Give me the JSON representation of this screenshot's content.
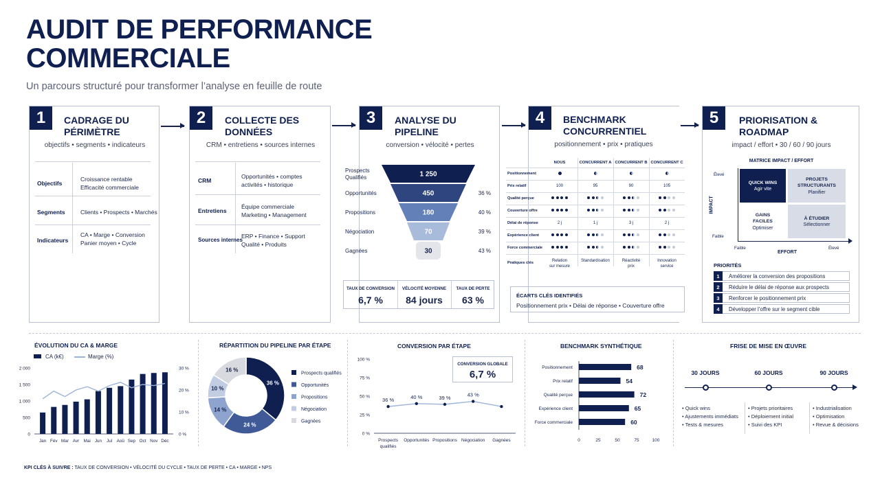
{
  "header": {
    "title": "AUDIT DE PERFORMANCE COMMERCIALE",
    "subtitle": "Un parcours structuré pour transformer l’analyse en feuille de route"
  },
  "steps": [
    {
      "num": "1",
      "title": "CADRAGE DU PÉRIMÈTRE",
      "sub": "objectifs • segments • indicateurs",
      "rows": [
        {
          "label": "Objectifs",
          "text": "Croissance rentable\nEfficacité commerciale"
        },
        {
          "label": "Segments",
          "text": "Clients • Prospects • Marchés"
        },
        {
          "label": "Indicateurs",
          "text": "CA • Marge • Conversion\nPanier moyen • Cycle"
        }
      ]
    },
    {
      "num": "2",
      "title": "COLLECTE DES DONNÉES",
      "sub": "CRM • entretiens • sources internes",
      "rows": [
        {
          "label": "CRM",
          "text": "Opportunités • comptes\nactivités • historique"
        },
        {
          "label": "Entretiens",
          "text": "Équipe commerciale\nMarketing • Management"
        },
        {
          "label": "Sources internes",
          "text": "ERP • Finance • Support\nQualité • Produits"
        }
      ]
    },
    {
      "num": "3",
      "title": "ANALYSE DU PIPELINE",
      "sub": "conversion • vélocité • pertes"
    },
    {
      "num": "4",
      "title": "BENCHMARK CONCURRENTIEL",
      "sub": "positionnement • prix • pratiques"
    },
    {
      "num": "5",
      "title": "PRIORISATION & ROADMAP",
      "sub": "impact / effort • 30 / 60 / 90 jours"
    }
  ],
  "funnel": {
    "stages": [
      {
        "label": "Prospects\nQualifiés",
        "value": "1 250",
        "rate": "",
        "color": "#0f1f4f"
      },
      {
        "label": "Opportunités",
        "value": "450",
        "rate": "36 %",
        "color": "#2e4580"
      },
      {
        "label": "Propositions",
        "value": "180",
        "rate": "40 %",
        "color": "#6480b8"
      },
      {
        "label": "Négociation",
        "value": "70",
        "rate": "39 %",
        "color": "#a9bbdb"
      },
      {
        "label": "Gagnées",
        "value": "30",
        "rate": "43 %",
        "color": "#e3e5ea"
      }
    ],
    "kpis": [
      {
        "label": "TAUX DE CONVERSION",
        "value": "6,7 %"
      },
      {
        "label": "VÉLOCITÉ MOYENNE",
        "value": "84 jours"
      },
      {
        "label": "TAUX DE PERTE",
        "value": "63 %"
      }
    ]
  },
  "benchmark": {
    "columns": [
      "NOUS",
      "CONCURRENT A",
      "CONCURRENT B",
      "CONCURRENT C"
    ],
    "rows": [
      {
        "label": "Positionnement",
        "type": "half",
        "cells": [
          1,
          0.5,
          0.5,
          0.5
        ]
      },
      {
        "label": "Prix relatif",
        "type": "text",
        "cells": [
          "100",
          "95",
          "90",
          "105"
        ]
      },
      {
        "label": "Qualité perçue",
        "type": "dots",
        "cells": [
          4,
          2.5,
          2.5,
          2
        ]
      },
      {
        "label": "Couverture offre",
        "type": "dots",
        "cells": [
          4,
          2.5,
          2.5,
          2
        ]
      },
      {
        "label": "Délai de réponse",
        "type": "text",
        "cells": [
          "2 j",
          "1 j",
          "3 j",
          "2 j"
        ]
      },
      {
        "label": "Expérience client",
        "type": "dots",
        "cells": [
          4,
          2.5,
          2.5,
          2
        ]
      },
      {
        "label": "Force commerciale",
        "type": "dots",
        "cells": [
          4,
          2.5,
          2.5,
          2
        ]
      },
      {
        "label": "Pratiques clés",
        "type": "text",
        "cells": [
          "Relation\nsur mesure",
          "Standardisation",
          "Réactivité\nprix",
          "Innovation\nservice"
        ]
      }
    ],
    "gaps_title": "ÉCARTS CLÉS IDENTIFIÉS",
    "gaps_text": "Positionnement prix • Délai de réponse • Couverture offre"
  },
  "matrix": {
    "title": "MATRICE IMPACT / EFFORT",
    "impact": "IMPACT",
    "effort": "EFFORT",
    "high": "Élevé",
    "low": "Faible",
    "high_x": "Élevé",
    "low_x": "Faible",
    "quadrants": [
      {
        "title": "QUICK WINS",
        "sub": "Agir vite",
        "dark": true
      },
      {
        "title": "PROJETS STRUCTURANTS",
        "sub": "Planifier",
        "dark": false
      },
      {
        "title": "GAINS FACILES",
        "sub": "Optimiser",
        "dark": false
      },
      {
        "title": "À ÉTUDIER",
        "sub": "Sélectionner",
        "dark": false
      }
    ],
    "priorities_title": "PRIORITÉS",
    "priorities": [
      "Améliorer la conversion des propositions",
      "Réduire le délai de réponse aux prospects",
      "Renforcer le positionnement prix",
      "Développer l’offre sur le segment cible"
    ]
  },
  "chart_data": [
    {
      "type": "bar",
      "title": "ÉVOLUTION DU CA & MARGE",
      "categories": [
        "Jan",
        "Fév",
        "Mar",
        "Avr",
        "Mai",
        "Jun",
        "Jul",
        "Aoû",
        "Sep",
        "Oct",
        "Nov",
        "Déc"
      ],
      "series": [
        {
          "name": "CA (k€)",
          "type": "bar",
          "values": [
            650,
            820,
            880,
            980,
            1050,
            1300,
            1400,
            1450,
            1650,
            1820,
            1850,
            1870
          ]
        },
        {
          "name": "Marge (%)",
          "type": "line",
          "values": [
            16,
            19.5,
            17,
            20,
            21.5,
            19.5,
            22,
            23.5,
            21,
            22.5,
            22,
            23
          ]
        }
      ],
      "ylim": [
        0,
        2000
      ],
      "yticks": [
        "0",
        "500",
        "1 000",
        "1 500",
        "2 000"
      ],
      "y2lim": [
        0,
        30
      ],
      "y2ticks": [
        "0 %",
        "10 %",
        "20 %",
        "30 %"
      ],
      "legend": "top-left"
    },
    {
      "type": "pie",
      "title": "RÉPARTITION DU PIPELINE PAR ÉTAPE",
      "labels": [
        "Prospects qualifiés",
        "Opportunités",
        "Propositions",
        "Négociation",
        "Gagnées"
      ],
      "values": [
        36,
        24,
        14,
        10,
        16
      ],
      "display": [
        "36 %",
        "24 %",
        "14 %",
        "10 %",
        "16 %"
      ],
      "colors": [
        "#0f1f4f",
        "#3f5a96",
        "#8ea4cf",
        "#c2cde4",
        "#d9dadf"
      ],
      "legend": "right"
    },
    {
      "type": "line",
      "title": "CONVERSION PAR ÉTAPE",
      "categories": [
        "Prospects\nqualifiés",
        "Opportunités",
        "Propositions",
        "Négociation",
        "Gagnées"
      ],
      "values": [
        36,
        40,
        39,
        43,
        36
      ],
      "display": [
        "36 %",
        "40 %",
        "39 %",
        "43 %",
        ""
      ],
      "ylim": [
        0,
        100
      ],
      "yticks": [
        "0 %",
        "25 %",
        "50 %",
        "75 %",
        "100 %"
      ],
      "callout_label": "CONVERSION GLOBALE",
      "callout_value": "6,7 %"
    },
    {
      "type": "bar",
      "title": "BENCHMARK SYNTHÉTIQUE",
      "orientation": "horizontal",
      "categories": [
        "Positionnement",
        "Prix relatif",
        "Qualité perçue",
        "Expérience client",
        "Force commerciale"
      ],
      "values": [
        68,
        54,
        72,
        65,
        60
      ],
      "xlim": [
        0,
        100
      ],
      "xticks": [
        "0",
        "25",
        "50",
        "75",
        "100"
      ]
    }
  ],
  "timeline": {
    "title": "FRISE DE MISE EN ŒUVRE",
    "milestones": [
      {
        "label": "30 JOURS",
        "items": [
          "Quick wins",
          "Ajustements immédiats",
          "Tests & mesures"
        ]
      },
      {
        "label": "60 JOURS",
        "items": [
          "Projets prioritaires",
          "Déploiement initial",
          "Suivi des KPI"
        ]
      },
      {
        "label": "90 JOURS",
        "items": [
          "Industrialisation",
          "Optimisation",
          "Revue & décisions"
        ]
      }
    ]
  },
  "footer": {
    "label": "KPI CLÉS À SUIVRE :",
    "text": "TAUX DE CONVERSION • VÉLOCITÉ DU CYCLE • TAUX DE PERTE • CA • MARGE • NPS"
  },
  "colors": {
    "navy": "#0f1f4f",
    "border": "#b9c0cf",
    "light": "#d7dce6"
  }
}
